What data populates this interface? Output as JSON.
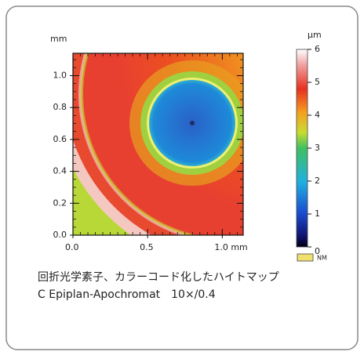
{
  "chart_data": {
    "type": "heatmap",
    "ylabel": "mm",
    "xlim": [
      0,
      1.14
    ],
    "ylim": [
      0,
      1.14
    ],
    "xticks": [
      {
        "value": 0,
        "label": "0.0"
      },
      {
        "value": 0.5,
        "label": "0.5"
      },
      {
        "value": 1,
        "label": "1.0 mm"
      }
    ],
    "yticks": [
      {
        "value": 0,
        "label": "0.0"
      },
      {
        "value": 0.2,
        "label": "0.2"
      },
      {
        "value": 0.4,
        "label": "0.4"
      },
      {
        "value": 0.6,
        "label": "0.6"
      },
      {
        "value": 0.8,
        "label": "0.8"
      },
      {
        "value": 1,
        "label": "1.0"
      }
    ],
    "colorbar": {
      "label": "μm",
      "lim": [
        0,
        6
      ],
      "ticks": [
        0,
        1,
        2,
        3,
        4,
        5,
        6
      ]
    },
    "legend_label": "NM",
    "caption": [
      "回折光学素子、カラーコード化したハイトマップ",
      "C Epiplan-Apochromat　10×/0.4"
    ]
  }
}
